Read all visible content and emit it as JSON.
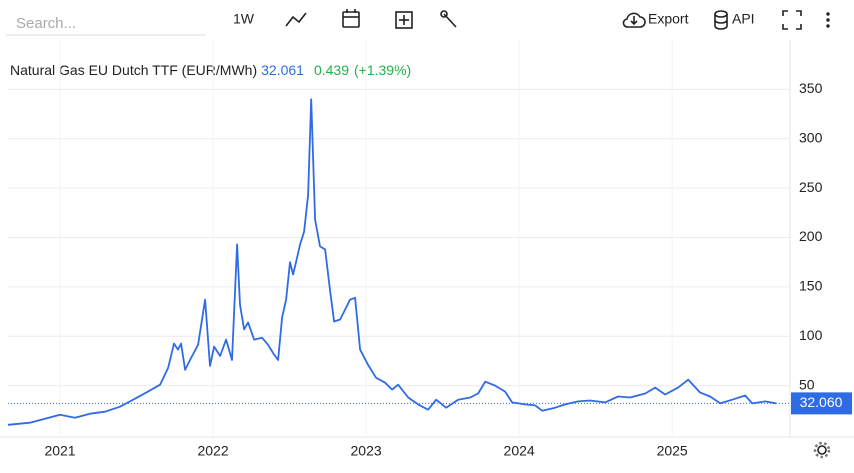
{
  "toolbar": {
    "search_placeholder": "Search...",
    "interval": "1W",
    "export": "Export",
    "api": "API"
  },
  "chart_data": {
    "type": "line",
    "title": "Natural Gas EU Dutch TTF (EUR/MWh)",
    "last": "32.061",
    "change": "0.439",
    "change_pct": "(+1.39%)",
    "color": "#2f6be4",
    "grid": true,
    "x": [
      2020.66,
      2020.804,
      2020.902,
      2021.0,
      2021.098,
      2021.196,
      2021.294,
      2021.392,
      2021.49,
      2021.575,
      2021.654,
      2021.706,
      2021.745,
      2021.771,
      2021.791,
      2021.817,
      2021.863,
      2021.902,
      2021.948,
      2021.98,
      2022.007,
      2022.046,
      2022.085,
      2022.124,
      2022.157,
      2022.176,
      2022.203,
      2022.229,
      2022.268,
      2022.32,
      2022.359,
      2022.399,
      2022.425,
      2022.451,
      2022.477,
      2022.503,
      2022.523,
      2022.542,
      2022.569,
      2022.595,
      2022.621,
      2022.641,
      2022.667,
      2022.699,
      2022.732,
      2022.765,
      2022.791,
      2022.83,
      2022.869,
      2022.895,
      2022.928,
      2022.961,
      2023.013,
      2023.065,
      2023.124,
      2023.17,
      2023.209,
      2023.275,
      2023.34,
      2023.405,
      2023.458,
      2023.523,
      2023.601,
      2023.68,
      2023.732,
      2023.778,
      2023.843,
      2023.908,
      2023.954,
      2024.039,
      2024.105,
      2024.15,
      2024.235,
      2024.301,
      2024.386,
      2024.464,
      2024.562,
      2024.647,
      2024.725,
      2024.824,
      2024.889,
      2024.954,
      2025.039,
      2025.105,
      2025.183,
      2025.248,
      2025.314,
      2025.392,
      2025.477,
      2025.523,
      2025.608,
      2025.68
    ],
    "values": [
      10.4,
      12.5,
      16.5,
      20.5,
      17.5,
      21.6,
      23.6,
      28.7,
      36.8,
      44,
      51,
      68,
      92.6,
      86.5,
      92.6,
      66,
      80,
      91.5,
      137,
      70,
      89.5,
      80,
      96.6,
      76,
      193,
      132,
      107,
      114,
      96.6,
      98.6,
      91.5,
      81.4,
      76,
      119,
      137,
      175,
      162.5,
      175,
      193,
      206,
      243,
      340,
      218,
      191,
      188,
      146,
      115,
      117,
      129,
      137,
      139,
      86.5,
      71,
      58,
      53,
      46,
      51,
      38,
      31,
      25.6,
      35.8,
      27.7,
      35.8,
      38,
      42,
      54,
      50,
      44,
      33,
      31,
      30,
      24.6,
      27.7,
      31,
      34,
      35,
      33,
      39,
      38,
      42,
      48,
      41,
      48,
      56,
      43,
      39,
      32,
      35.8,
      40,
      32,
      34,
      32.06
    ],
    "last_price": {
      "value": 32.06,
      "label": "32.060"
    },
    "xlim": [
      2020.66,
      2025.77
    ],
    "xticks": [
      2021,
      2022,
      2023,
      2024,
      2025
    ],
    "ylim": [
      -2,
      400
    ],
    "yticks": [
      50,
      100,
      150,
      200,
      250,
      300,
      350
    ]
  }
}
